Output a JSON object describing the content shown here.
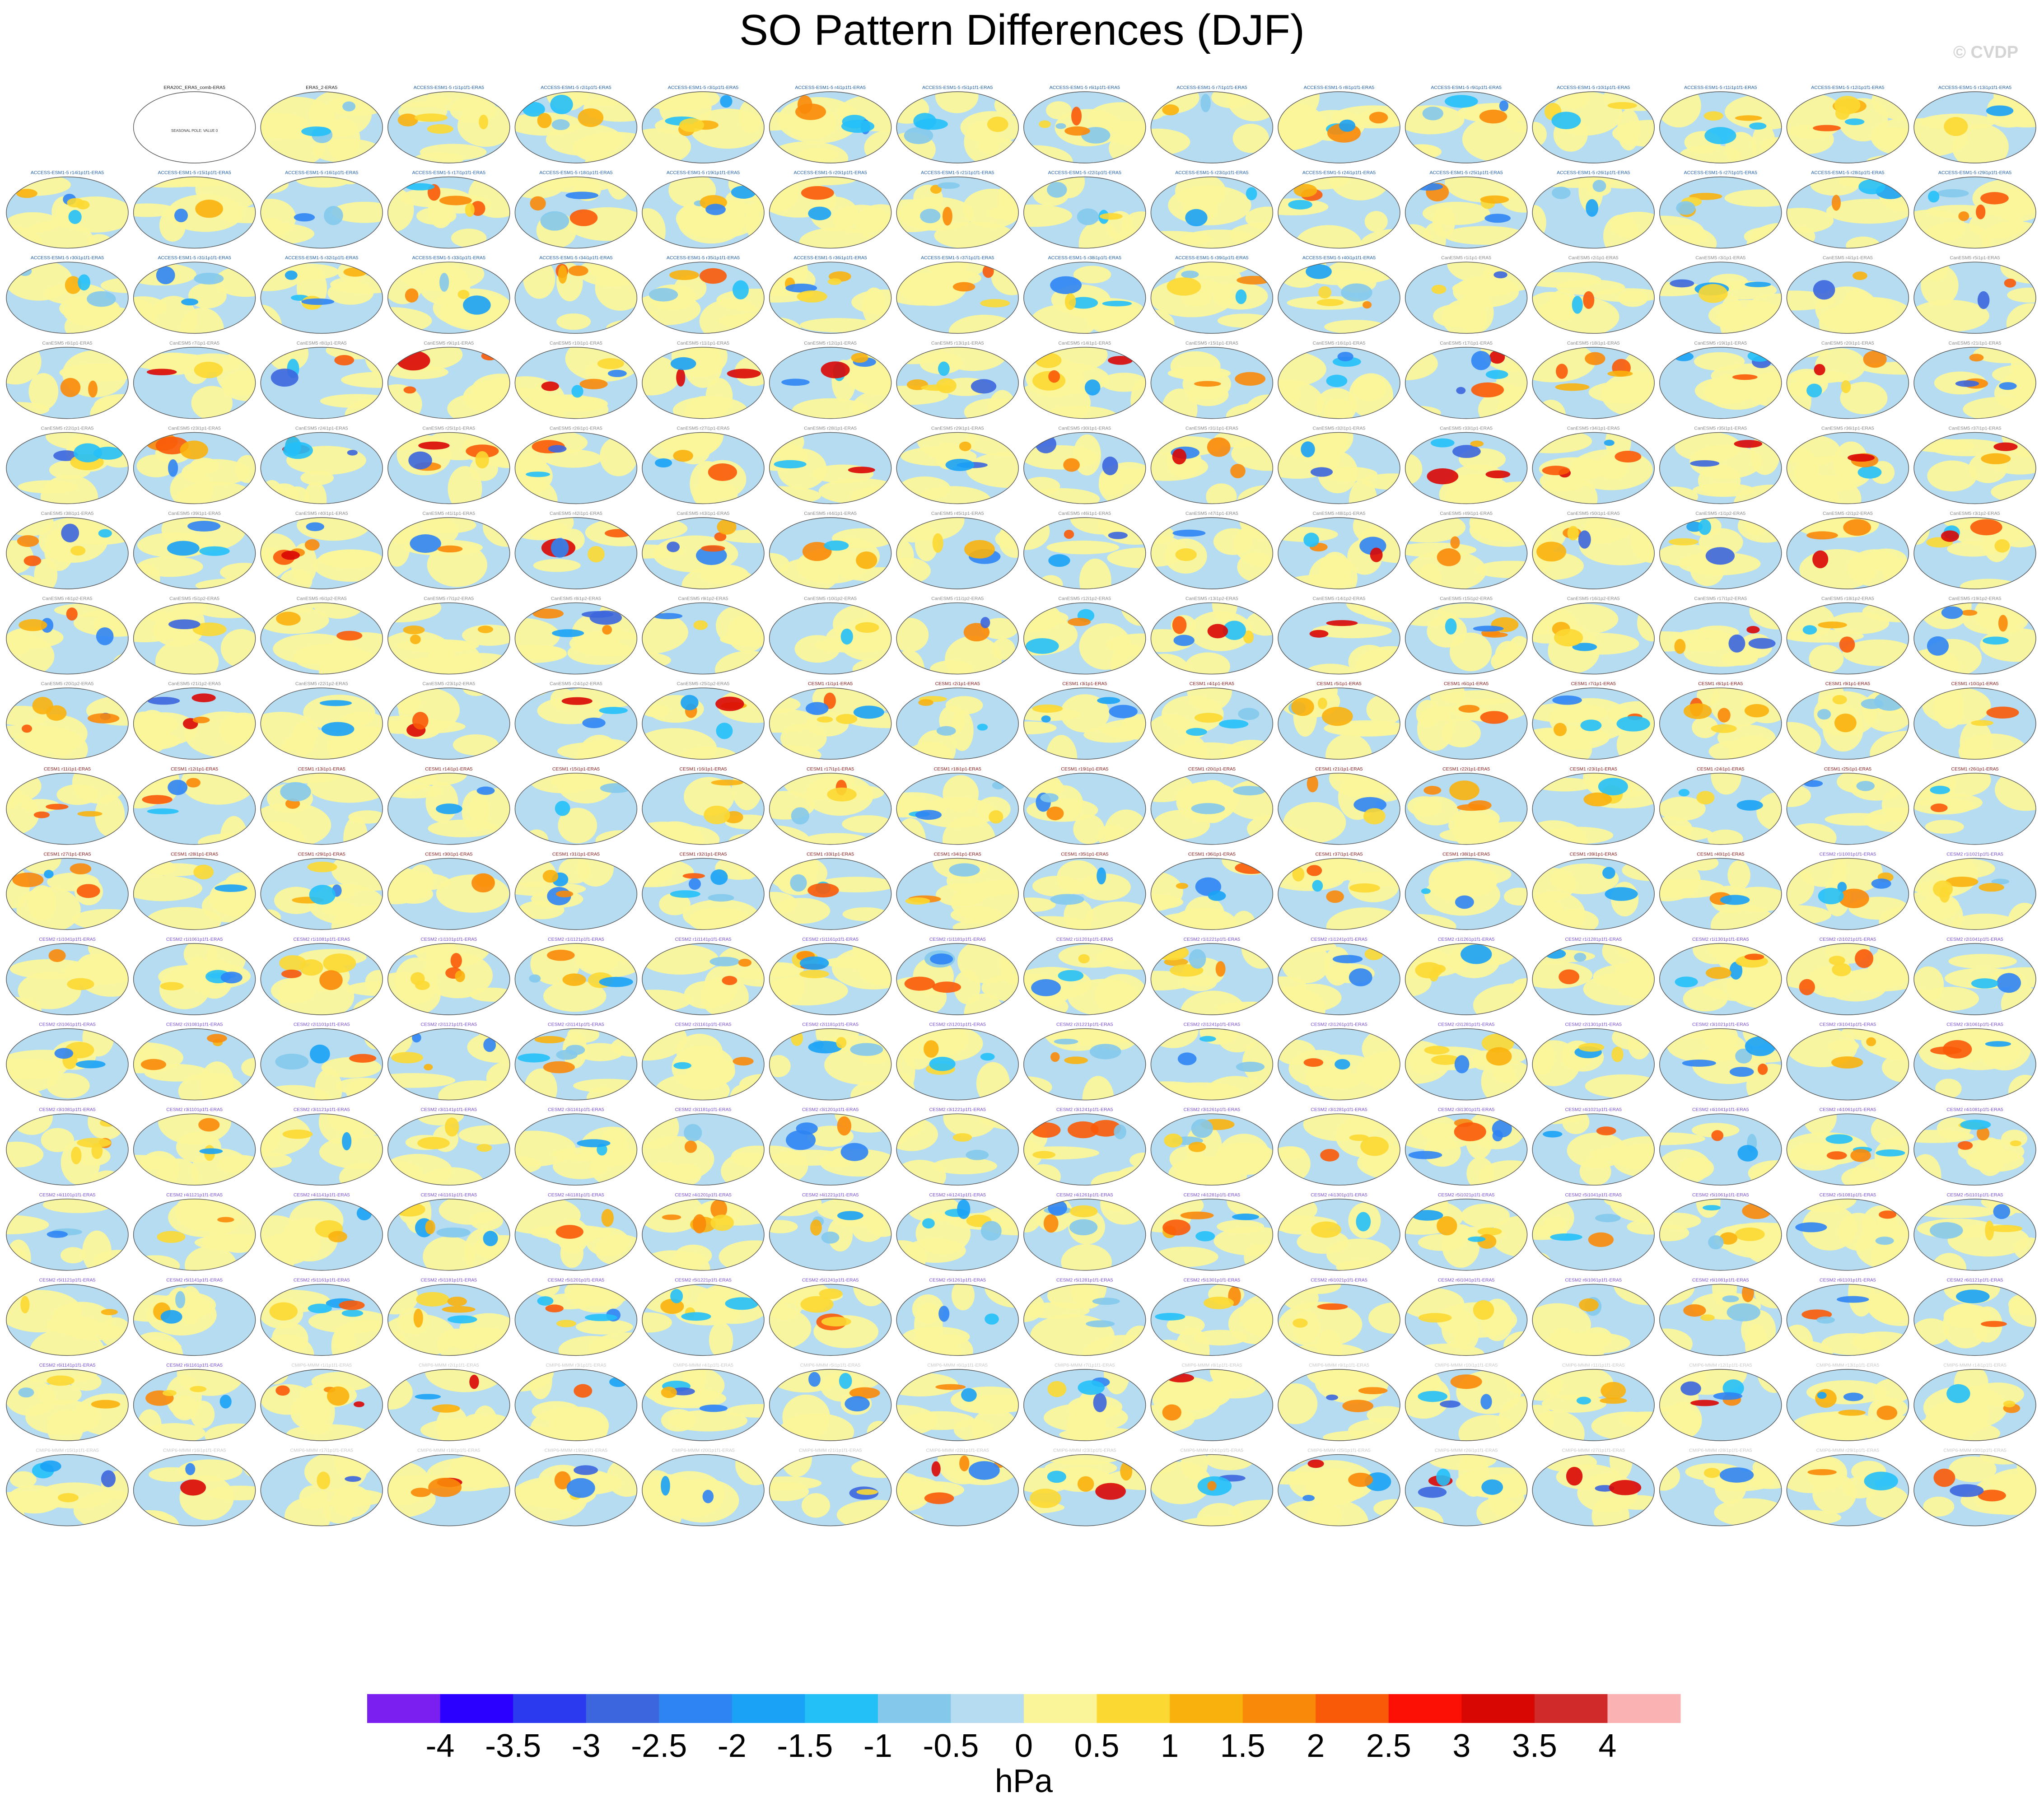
{
  "title": "SO Pattern Differences (DJF)",
  "brand": "© CVDP",
  "colors": {
    "ocean": "#b5dcf0",
    "land_line": "#555555",
    "dataset_label_access": "#1f5fa8",
    "dataset_label_canesm": "#8a8a8a",
    "dataset_label_cesm1": "#8b1a1a",
    "dataset_label_cesm2": "#7a4fd6",
    "dataset_label_cmip6": "#c9c9c9"
  },
  "panels": {
    "reference_label": "ERA20C_ERA5_comb-ERA5",
    "reference_inner_label": "SEASONAL POLE: VALUE 0",
    "second_label": "ERA5_2-ERA5",
    "labels": [
      "ACCESS-ESM1-5 r1i1p1f1-ERA5",
      "ACCESS-ESM1-5 r2i1p1f1-ERA5",
      "ACCESS-ESM1-5 r3i1p1f1-ERA5",
      "ACCESS-ESM1-5 r4i1p1f1-ERA5",
      "ACCESS-ESM1-5 r5i1p1f1-ERA5",
      "ACCESS-ESM1-5 r6i1p1f1-ERA5",
      "ACCESS-ESM1-5 r7i1p1f1-ERA5",
      "ACCESS-ESM1-5 r8i1p1f1-ERA5",
      "ACCESS-ESM1-5 r9i1p1f1-ERA5",
      "ACCESS-ESM1-5 r10i1p1f1-ERA5",
      "ACCESS-ESM1-5 r11i1p1f1-ERA5",
      "ACCESS-ESM1-5 r12i1p1f1-ERA5",
      "ACCESS-ESM1-5 r13i1p1f1-ERA5",
      "ACCESS-ESM1-5 r14i1p1f1-ERA5",
      "ACCESS-ESM1-5 r15i1p1f1-ERA5",
      "ACCESS-ESM1-5 r16i1p1f1-ERA5",
      "ACCESS-ESM1-5 r17i1p1f1-ERA5",
      "ACCESS-ESM1-5 r18i1p1f1-ERA5",
      "ACCESS-ESM1-5 r19i1p1f1-ERA5",
      "ACCESS-ESM1-5 r20i1p1f1-ERA5",
      "ACCESS-ESM1-5 r21i1p1f1-ERA5",
      "ACCESS-ESM1-5 r22i1p1f1-ERA5",
      "ACCESS-ESM1-5 r23i1p1f1-ERA5",
      "ACCESS-ESM1-5 r24i1p1f1-ERA5",
      "ACCESS-ESM1-5 r25i1p1f1-ERA5",
      "ACCESS-ESM1-5 r26i1p1f1-ERA5",
      "ACCESS-ESM1-5 r27i1p1f1-ERA5",
      "ACCESS-ESM1-5 r28i1p1f1-ERA5",
      "ACCESS-ESM1-5 r29i1p1f1-ERA5",
      "ACCESS-ESM1-5 r30i1p1f1-ERA5",
      "ACCESS-ESM1-5 r31i1p1f1-ERA5",
      "ACCESS-ESM1-5 r32i1p1f1-ERA5",
      "ACCESS-ESM1-5 r33i1p1f1-ERA5",
      "ACCESS-ESM1-5 r34i1p1f1-ERA5",
      "ACCESS-ESM1-5 r35i1p1f1-ERA5",
      "ACCESS-ESM1-5 r36i1p1f1-ERA5",
      "ACCESS-ESM1-5 r37i1p1f1-ERA5",
      "ACCESS-ESM1-5 r38i1p1f1-ERA5",
      "ACCESS-ESM1-5 r39i1p1f1-ERA5",
      "ACCESS-ESM1-5 r40i1p1f1-ERA5",
      "CanESM5 r1i1p1-ERA5",
      "CanESM5 r2i1p1-ERA5",
      "CanESM5 r3i1p1-ERA5",
      "CanESM5 r4i1p1-ERA5",
      "CanESM5 r5i1p1-ERA5",
      "CanESM5 r6i1p1-ERA5",
      "CanESM5 r7i1p1-ERA5",
      "CanESM5 r8i1p1-ERA5",
      "CanESM5 r9i1p1-ERA5",
      "CanESM5 r10i1p1-ERA5",
      "CanESM5 r11i1p1-ERA5",
      "CanESM5 r12i1p1-ERA5",
      "CanESM5 r13i1p1-ERA5",
      "CanESM5 r14i1p1-ERA5",
      "CanESM5 r15i1p1-ERA5",
      "CanESM5 r16i1p1-ERA5",
      "CanESM5 r17i1p1-ERA5",
      "CanESM5 r18i1p1-ERA5",
      "CanESM5 r19i1p1-ERA5",
      "CanESM5 r20i1p1-ERA5",
      "CanESM5 r21i1p1-ERA5",
      "CanESM5 r22i1p1-ERA5",
      "CanESM5 r23i1p1-ERA5",
      "CanESM5 r24i1p1-ERA5",
      "CanESM5 r25i1p1-ERA5",
      "CanESM5 r26i1p1-ERA5",
      "CanESM5 r27i1p1-ERA5",
      "CanESM5 r28i1p1-ERA5",
      "CanESM5 r29i1p1-ERA5",
      "CanESM5 r30i1p1-ERA5",
      "CanESM5 r31i1p1-ERA5",
      "CanESM5 r32i1p1-ERA5",
      "CanESM5 r33i1p1-ERA5",
      "CanESM5 r34i1p1-ERA5",
      "CanESM5 r35i1p1-ERA5",
      "CanESM5 r36i1p1-ERA5",
      "CanESM5 r37i1p1-ERA5",
      "CanESM5 r38i1p1-ERA5",
      "CanESM5 r39i1p1-ERA5",
      "CanESM5 r40i1p1-ERA5",
      "CanESM5 r41i1p1-ERA5",
      "CanESM5 r42i1p1-ERA5",
      "CanESM5 r43i1p1-ERA5",
      "CanESM5 r44i1p1-ERA5",
      "CanESM5 r45i1p1-ERA5",
      "CanESM5 r46i1p1-ERA5",
      "CanESM5 r47i1p1-ERA5",
      "CanESM5 r48i1p1-ERA5",
      "CanESM5 r49i1p1-ERA5",
      "CanESM5 r50i1p1-ERA5",
      "CanESM5 r1i1p2-ERA5",
      "CanESM5 r2i1p2-ERA5",
      "CanESM5 r3i1p2-ERA5",
      "CanESM5 r4i1p2-ERA5",
      "CanESM5 r5i1p2-ERA5",
      "CanESM5 r6i1p2-ERA5",
      "CanESM5 r7i1p2-ERA5",
      "CanESM5 r8i1p2-ERA5",
      "CanESM5 r9i1p2-ERA5",
      "CanESM5 r10i1p2-ERA5",
      "CanESM5 r11i1p2-ERA5",
      "CanESM5 r12i1p2-ERA5",
      "CanESM5 r13i1p2-ERA5",
      "CanESM5 r14i1p2-ERA5",
      "CanESM5 r15i1p2-ERA5",
      "CanESM5 r16i1p2-ERA5",
      "CanESM5 r17i1p2-ERA5",
      "CanESM5 r18i1p2-ERA5",
      "CanESM5 r19i1p2-ERA5",
      "CanESM5 r20i1p2-ERA5",
      "CanESM5 r21i1p2-ERA5",
      "CanESM5 r22i1p2-ERA5",
      "CanESM5 r23i1p2-ERA5",
      "CanESM5 r24i1p2-ERA5",
      "CanESM5 r25i1p2-ERA5",
      "CESM1 r1i1p1-ERA5",
      "CESM1 r2i1p1-ERA5",
      "CESM1 r3i1p1-ERA5",
      "CESM1 r4i1p1-ERA5",
      "CESM1 r5i1p1-ERA5",
      "CESM1 r6i1p1-ERA5",
      "CESM1 r7i1p1-ERA5",
      "CESM1 r8i1p1-ERA5",
      "CESM1 r9i1p1-ERA5",
      "CESM1 r10i1p1-ERA5",
      "CESM1 r11i1p1-ERA5",
      "CESM1 r12i1p1-ERA5",
      "CESM1 r13i1p1-ERA5",
      "CESM1 r14i1p1-ERA5",
      "CESM1 r15i1p1-ERA5",
      "CESM1 r16i1p1-ERA5",
      "CESM1 r17i1p1-ERA5",
      "CESM1 r18i1p1-ERA5",
      "CESM1 r19i1p1-ERA5",
      "CESM1 r20i1p1-ERA5",
      "CESM1 r21i1p1-ERA5",
      "CESM1 r22i1p1-ERA5",
      "CESM1 r23i1p1-ERA5",
      "CESM1 r24i1p1-ERA5",
      "CESM1 r25i1p1-ERA5",
      "CESM1 r26i1p1-ERA5",
      "CESM1 r27i1p1-ERA5",
      "CESM1 r28i1p1-ERA5",
      "CESM1 r29i1p1-ERA5",
      "CESM1 r30i1p1-ERA5",
      "CESM1 r31i1p1-ERA5",
      "CESM1 r32i1p1-ERA5",
      "CESM1 r33i1p1-ERA5",
      "CESM1 r34i1p1-ERA5",
      "CESM1 r35i1p1-ERA5",
      "CESM1 r36i1p1-ERA5",
      "CESM1 r37i1p1-ERA5",
      "CESM1 r38i1p1-ERA5",
      "CESM1 r39i1p1-ERA5",
      "CESM1 r40i1p1-ERA5",
      "CESM2 r1i1001p1f1-ERA5",
      "CESM2 r1i1021p1f1-ERA5",
      "CESM2 r1i1041p1f1-ERA5",
      "CESM2 r1i1061p1f1-ERA5",
      "CESM2 r1i1081p1f1-ERA5",
      "CESM2 r1i1101p1f1-ERA5",
      "CESM2 r1i1121p1f1-ERA5",
      "CESM2 r1i1141p1f1-ERA5",
      "CESM2 r1i1161p1f1-ERA5",
      "CESM2 r1i1181p1f1-ERA5",
      "CESM2 r1i1201p1f1-ERA5",
      "CESM2 r1i1221p1f1-ERA5",
      "CESM2 r1i1241p1f1-ERA5",
      "CESM2 r1i1261p1f1-ERA5",
      "CESM2 r1i1281p1f1-ERA5",
      "CESM2 r1i1301p1f1-ERA5",
      "CESM2 r2i1021p1f1-ERA5",
      "CESM2 r2i1041p1f1-ERA5",
      "CESM2 r2i1061p1f1-ERA5",
      "CESM2 r2i1081p1f1-ERA5",
      "CESM2 r2i1101p1f1-ERA5",
      "CESM2 r2i1121p1f1-ERA5",
      "CESM2 r2i1141p1f1-ERA5",
      "CESM2 r2i1161p1f1-ERA5",
      "CESM2 r2i1181p1f1-ERA5",
      "CESM2 r2i1201p1f1-ERA5",
      "CESM2 r2i1221p1f1-ERA5",
      "CESM2 r2i1241p1f1-ERA5",
      "CESM2 r2i1261p1f1-ERA5",
      "CESM2 r2i1281p1f1-ERA5",
      "CESM2 r2i1301p1f1-ERA5",
      "CESM2 r3i1021p1f1-ERA5",
      "CESM2 r3i1041p1f1-ERA5",
      "CESM2 r3i1061p1f1-ERA5",
      "CESM2 r3i1081p1f1-ERA5",
      "CESM2 r3i1101p1f1-ERA5",
      "CESM2 r3i1121p1f1-ERA5",
      "CESM2 r3i1141p1f1-ERA5",
      "CESM2 r3i1161p1f1-ERA5",
      "CESM2 r3i1181p1f1-ERA5",
      "CESM2 r3i1201p1f1-ERA5",
      "CESM2 r3i1221p1f1-ERA5",
      "CESM2 r3i1241p1f1-ERA5",
      "CESM2 r3i1261p1f1-ERA5",
      "CESM2 r3i1281p1f1-ERA5",
      "CESM2 r3i1301p1f1-ERA5",
      "CESM2 r4i1021p1f1-ERA5",
      "CESM2 r4i1041p1f1-ERA5",
      "CESM2 r4i1061p1f1-ERA5",
      "CESM2 r4i1081p1f1-ERA5",
      "CESM2 r4i1101p1f1-ERA5",
      "CESM2 r4i1121p1f1-ERA5",
      "CESM2 r4i1141p1f1-ERA5",
      "CESM2 r4i1161p1f1-ERA5",
      "CESM2 r4i1181p1f1-ERA5",
      "CESM2 r4i1201p1f1-ERA5",
      "CESM2 r4i1221p1f1-ERA5",
      "CESM2 r4i1241p1f1-ERA5",
      "CESM2 r4i1261p1f1-ERA5",
      "CESM2 r4i1281p1f1-ERA5",
      "CESM2 r4i1301p1f1-ERA5",
      "CESM2 r5i1021p1f1-ERA5",
      "CESM2 r5i1041p1f1-ERA5",
      "CESM2 r5i1061p1f1-ERA5",
      "CESM2 r5i1081p1f1-ERA5",
      "CESM2 r5i1101p1f1-ERA5",
      "CESM2 r5i1121p1f1-ERA5",
      "CESM2 r5i1141p1f1-ERA5",
      "CESM2 r5i1161p1f1-ERA5",
      "CESM2 r5i1181p1f1-ERA5",
      "CESM2 r5i1201p1f1-ERA5",
      "CESM2 r5i1221p1f1-ERA5",
      "CESM2 r5i1241p1f1-ERA5",
      "CESM2 r5i1261p1f1-ERA5",
      "CESM2 r5i1281p1f1-ERA5",
      "CESM2 r5i1301p1f1-ERA5",
      "CESM2 r6i1021p1f1-ERA5",
      "CESM2 r6i1041p1f1-ERA5",
      "CESM2 r6i1061p1f1-ERA5",
      "CESM2 r6i1081p1f1-ERA5",
      "CESM2 r6i1101p1f1-ERA5",
      "CESM2 r6i1121p1f1-ERA5",
      "CESM2 r6i1141p1f1-ERA5",
      "CESM2 r6i1161p1f1-ERA5",
      "CMIP6-MMM r1i1p1f1-ERA5",
      "CMIP6-MMM r2i1p1f1-ERA5",
      "CMIP6-MMM r3i1p1f1-ERA5",
      "CMIP6-MMM r4i1p1f1-ERA5",
      "CMIP6-MMM r5i1p1f1-ERA5",
      "CMIP6-MMM r6i1p1f1-ERA5",
      "CMIP6-MMM r7i1p1f1-ERA5",
      "CMIP6-MMM r8i1p1f1-ERA5",
      "CMIP6-MMM r9i1p1f1-ERA5",
      "CMIP6-MMM r10i1p1f1-ERA5",
      "CMIP6-MMM r11i1p1f1-ERA5",
      "CMIP6-MMM r12i1p1f1-ERA5",
      "CMIP6-MMM r13i1p1f1-ERA5",
      "CMIP6-MMM r14i1p1f1-ERA5",
      "CMIP6-MMM r15i1p1f1-ERA5",
      "CMIP6-MMM r16i1p1f1-ERA5",
      "CMIP6-MMM r17i1p1f1-ERA5",
      "CMIP6-MMM r18i1p1f1-ERA5",
      "CMIP6-MMM r19i1p1f1-ERA5",
      "CMIP6-MMM r20i1p1f1-ERA5",
      "CMIP6-MMM r21i1p1f1-ERA5",
      "CMIP6-MMM r22i1p1f1-ERA5",
      "CMIP6-MMM r23i1p1f1-ERA5",
      "CMIP6-MMM r24i1p1f1-ERA5",
      "CMIP6-MMM r25i1p1f1-ERA5",
      "CMIP6-MMM r26i1p1f1-ERA5",
      "CMIP6-MMM r27i1p1f1-ERA5",
      "CMIP6-MMM r28i1p1f1-ERA5",
      "CMIP6-MMM r29i1p1f1-ERA5",
      "CMIP6-MMM r30i1p1f1-ERA5"
    ]
  },
  "chart_data": {
    "type": "heatmap",
    "title": "SO Pattern Differences (DJF)",
    "layout": "small multiples, 18 rows x 16 columns of global maps (Robinson-like projection)",
    "colorbar": {
      "unit": "hPa",
      "tick_labels": [
        "-4",
        "-3.5",
        "-3",
        "-2.5",
        "-2",
        "-1.5",
        "-1",
        "-0.5",
        "0",
        "0.5",
        "1",
        "1.5",
        "2",
        "2.5",
        "3",
        "3.5",
        "4"
      ],
      "levels": [
        -4,
        -3.5,
        -3,
        -2.5,
        -2,
        -1.5,
        -1,
        -0.5,
        0,
        0.5,
        1,
        1.5,
        2,
        2.5,
        3,
        3.5,
        4
      ],
      "colors": [
        "#7a1ff0",
        "#2c00ff",
        "#2c3aef",
        "#3c66de",
        "#2f84f4",
        "#1aa2f6",
        "#23c0f8",
        "#84c9ec",
        "#b5dcf0",
        "#fbf59a",
        "#fcd832",
        "#f9b10d",
        "#f98a09",
        "#f95a08",
        "#fc1005",
        "#d90704",
        "#d02a2a",
        "#fbb2b2"
      ]
    }
  }
}
